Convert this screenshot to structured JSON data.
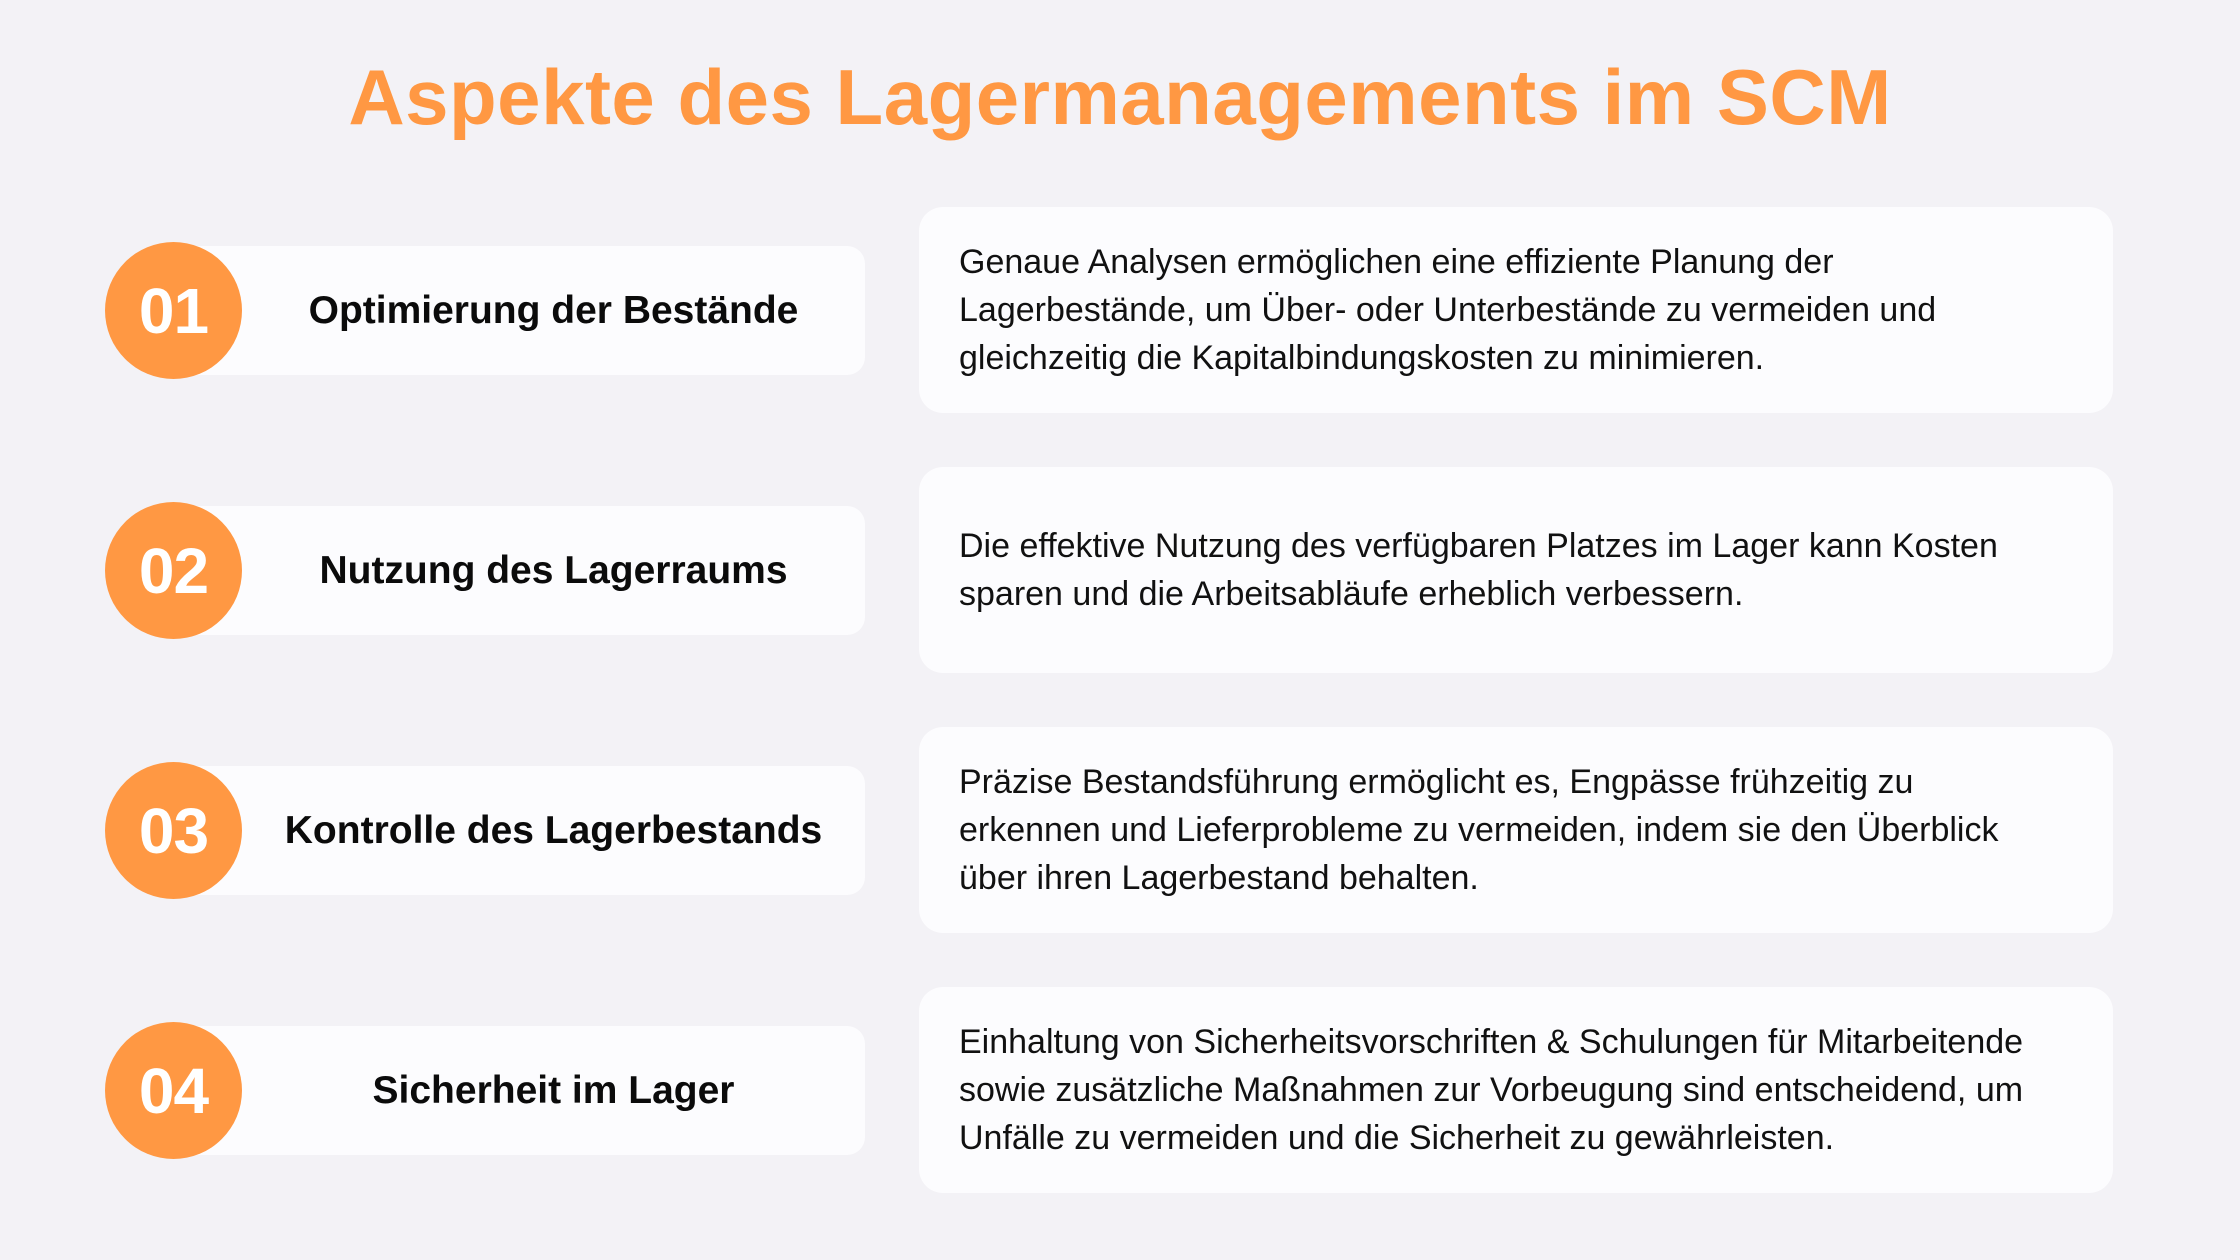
{
  "title": "Aspekte des Lagermanagements im SCM",
  "colors": {
    "accent": "#FF9843",
    "background": "#F3F2F6",
    "card": "#FCFCFE"
  },
  "items": [
    {
      "number": "01",
      "label": "Optimierung der Bestände",
      "description": "Genaue Analysen ermöglichen eine effiziente Planung der Lagerbestände, um Über- oder Unterbestände zu vermeiden und gleichzeitig die Kapitalbindungskosten zu minimieren."
    },
    {
      "number": "02",
      "label": "Nutzung des Lagerraums",
      "description": "Die effektive Nutzung des verfügbaren Platzes im Lager kann Kosten sparen und die Arbeitsabläufe erheblich verbessern."
    },
    {
      "number": "03",
      "label": "Kontrolle des Lagerbestands",
      "description": "Präzise Bestandsführung ermöglicht es, Engpässe frühzeitig zu erkennen und Lieferprobleme zu vermeiden, indem sie den Überblick über ihren Lagerbestand behalten."
    },
    {
      "number": "04",
      "label": "Sicherheit im Lager",
      "description": "Einhaltung von Sicherheitsvorschriften & Schulungen für Mitarbeitende sowie zusätzliche Maßnahmen zur Vorbeugung sind entscheidend, um Unfälle zu vermeiden und die Sicherheit zu gewährleisten."
    }
  ]
}
